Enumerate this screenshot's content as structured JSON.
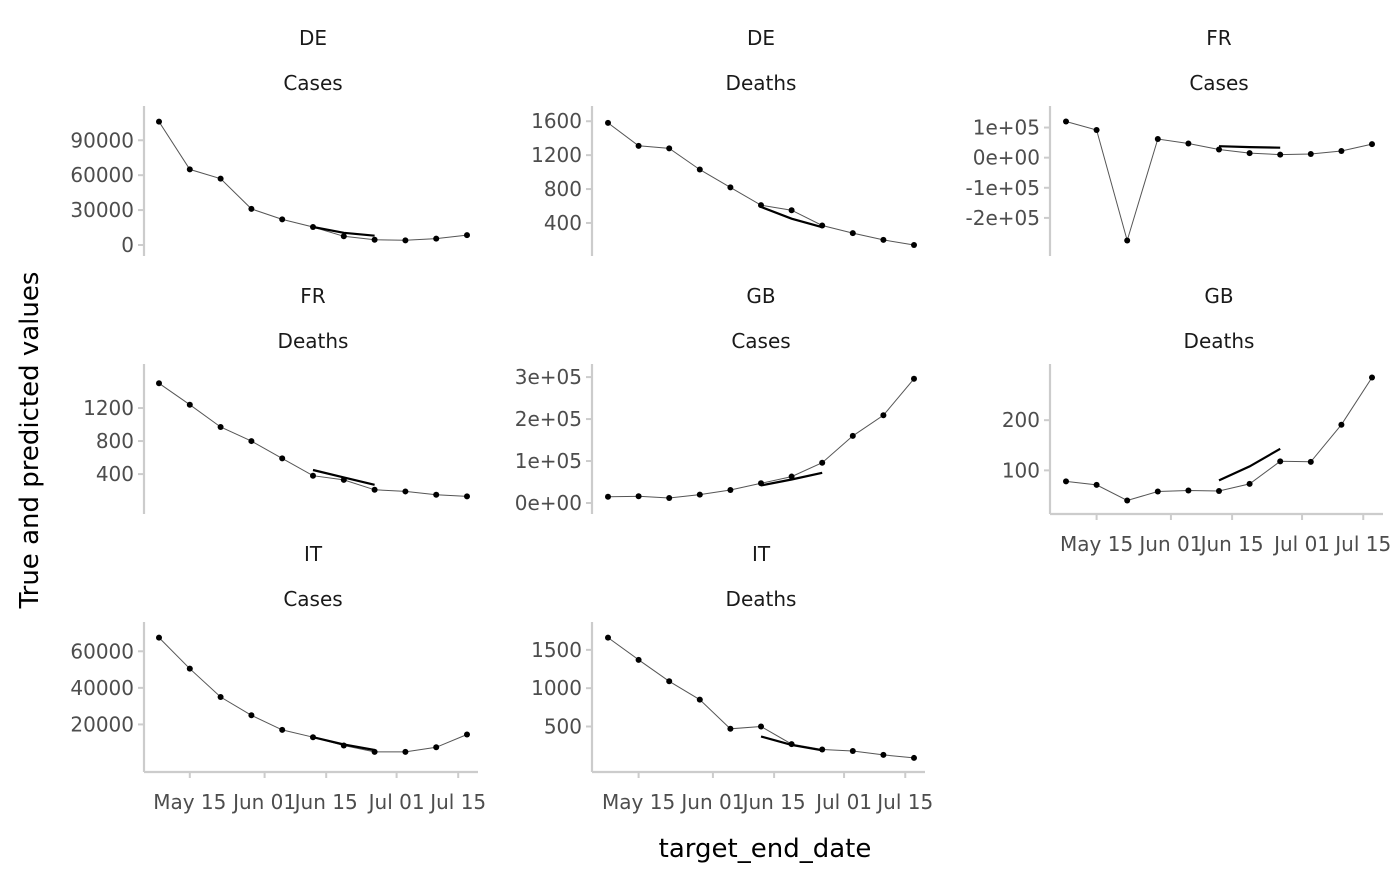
{
  "chart_data": {
    "type": "line",
    "ylabel": "True and predicted values",
    "xlabel": "target_end_date",
    "x_ticks": [
      "May 15",
      "Jun 01",
      "Jun 15",
      "Jul 01",
      "Jul 15"
    ],
    "x_dates": [
      "2021-05-08",
      "2021-05-15",
      "2021-05-22",
      "2021-05-29",
      "2021-06-05",
      "2021-06-12",
      "2021-06-19",
      "2021-06-26",
      "2021-07-03",
      "2021-07-10",
      "2021-07-17"
    ],
    "prediction_dates": [
      "2021-06-12",
      "2021-06-19",
      "2021-06-26"
    ],
    "panels": [
      {
        "location": "DE",
        "target": "Cases",
        "ylim": [
          0,
          110000
        ],
        "ticks": [
          0,
          30000,
          60000,
          90000
        ],
        "tick_labels": [
          "0",
          "30000",
          "60000",
          "90000"
        ],
        "true": [
          106000,
          65000,
          57000,
          31000,
          22000,
          15500,
          7500,
          4500,
          4000,
          5500,
          8500
        ],
        "predicted": [
          15500,
          10500,
          8000
        ]
      },
      {
        "location": "DE",
        "target": "Deaths",
        "ylim": [
          140,
          1650
        ],
        "ticks": [
          400,
          800,
          1200,
          1600
        ],
        "tick_labels": [
          "400",
          "800",
          "1200",
          "1600"
        ],
        "true": [
          1580,
          1310,
          1280,
          1030,
          820,
          610,
          550,
          370,
          280,
          200,
          140
        ],
        "predicted": [
          590,
          450,
          350
        ]
      },
      {
        "location": "FR",
        "target": "Cases",
        "ylim": [
          -290000,
          135000
        ],
        "ticks": [
          -200000,
          -100000,
          0,
          100000
        ],
        "tick_labels": [
          "-2e+05",
          "-1e+05",
          "0e+00",
          "1e+05"
        ],
        "true": [
          120000,
          92000,
          -275000,
          62000,
          47000,
          27000,
          15000,
          10000,
          12000,
          22000,
          45000
        ],
        "predicted": [
          38000,
          35000,
          33000
        ]
      },
      {
        "location": "FR",
        "target": "Deaths",
        "ylim": [
          50,
          1600
        ],
        "ticks": [
          400,
          800,
          1200
        ],
        "tick_labels": [
          "400",
          "800",
          "1200"
        ],
        "true": [
          1500,
          1240,
          970,
          800,
          590,
          380,
          330,
          210,
          190,
          150,
          130
        ],
        "predicted": [
          450,
          360,
          270
        ]
      },
      {
        "location": "GB",
        "target": "Cases",
        "ylim": [
          0,
          305000
        ],
        "ticks": [
          0,
          100000,
          200000,
          300000
        ],
        "tick_labels": [
          "0e+00",
          "1e+05",
          "2e+05",
          "3e+05"
        ],
        "true": [
          15000,
          16000,
          12000,
          20000,
          31000,
          47000,
          63000,
          96000,
          160000,
          209000,
          296000
        ],
        "predicted": [
          42000,
          56000,
          72000
        ]
      },
      {
        "location": "GB",
        "target": "Deaths",
        "ylim": [
          35,
          290
        ],
        "ticks": [
          100,
          200
        ],
        "tick_labels": [
          "100",
          "200"
        ],
        "true": [
          78,
          71,
          40,
          58,
          60,
          59,
          73,
          118,
          117,
          191,
          285
        ],
        "predicted": [
          80,
          108,
          143
        ]
      },
      {
        "location": "IT",
        "target": "Cases",
        "ylim": [
          0,
          70000
        ],
        "ticks": [
          20000,
          40000,
          60000
        ],
        "tick_labels": [
          "20000",
          "40000",
          "60000"
        ],
        "true": [
          67500,
          50500,
          35000,
          25000,
          17000,
          13000,
          8500,
          5000,
          5000,
          7500,
          14500
        ],
        "predicted": [
          13000,
          9000,
          6000
        ]
      },
      {
        "location": "IT",
        "target": "Deaths",
        "ylim": [
          50,
          1720
        ],
        "ticks": [
          500,
          1000,
          1500
        ],
        "tick_labels": [
          "500",
          "1000",
          "1500"
        ],
        "true": [
          1660,
          1370,
          1090,
          850,
          470,
          500,
          270,
          200,
          180,
          130,
          90
        ],
        "predicted": [
          370,
          260,
          190
        ]
      }
    ]
  }
}
